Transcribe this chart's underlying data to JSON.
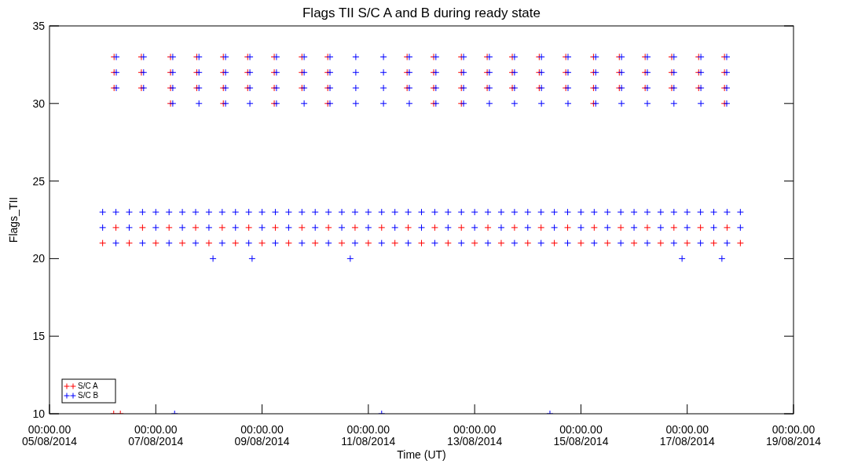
{
  "chart_data": {
    "type": "scatter",
    "title": "Flags TII S/C A and B during ready state",
    "xlabel": "Time (UT)",
    "ylabel": "Flags_TII",
    "xlim": [
      "2014-08-05",
      "2014-08-19"
    ],
    "xticks": [
      {
        "value": "2014-08-05",
        "label": "00:00.00\n05/08/2014"
      },
      {
        "value": "2014-08-07",
        "label": "00:00.00\n07/08/2014"
      },
      {
        "value": "2014-08-09",
        "label": "00:00.00\n09/08/2014"
      },
      {
        "value": "2014-08-11",
        "label": "00:00.00\n11/08/2014"
      },
      {
        "value": "2014-08-13",
        "label": "00:00.00\n13/08/2014"
      },
      {
        "value": "2014-08-15",
        "label": "00:00.00\n15/08/2014"
      },
      {
        "value": "2014-08-17",
        "label": "00:00.00\n17/08/2014"
      },
      {
        "value": "2014-08-19",
        "label": "00:00.00\n19/08/2014"
      }
    ],
    "ylim": [
      10,
      35
    ],
    "yticks": [
      10,
      15,
      20,
      25,
      30,
      35
    ],
    "marker": "cross",
    "legend": "bottom left",
    "series": [
      {
        "name": "S/C A",
        "color": "#ff0000",
        "x": [
          "2014-08-06T05:10",
          "2014-08-06T17:30",
          "2014-08-07T06:40",
          "2014-08-07T18:30",
          "2014-08-08T06:30",
          "2014-08-08T17:30",
          "2014-08-09T05:30",
          "2014-08-09T18:00",
          "2014-08-10T05:40",
          "2014-08-11T17:30",
          "2014-08-12T05:30",
          "2014-08-12T18:00",
          "2014-08-13T05:40",
          "2014-08-13T17:00",
          "2014-08-14T05:10",
          "2014-08-14T17:10",
          "2014-08-15T05:40",
          "2014-08-15T17:20",
          "2014-08-16T05:00",
          "2014-08-16T17:00",
          "2014-08-17T05:10",
          "2014-08-17T16:50"
        ],
        "values": [
          33,
          33,
          33,
          33,
          33,
          33,
          33,
          33,
          33,
          33,
          33,
          33,
          33,
          33,
          33,
          33,
          33,
          33,
          33,
          33,
          33,
          33
        ]
      },
      {
        "name": "S/C B",
        "color": "#0000ff",
        "x": [
          "2014-08-06T06:10",
          "2014-08-06T18:30",
          "2014-08-07T07:40",
          "2014-08-07T19:30",
          "2014-08-08T07:30",
          "2014-08-08T18:30",
          "2014-08-09T06:30",
          "2014-08-09T19:00",
          "2014-08-10T06:40",
          "2014-08-10T18:20",
          "2014-08-11T06:50",
          "2014-08-11T18:30",
          "2014-08-12T06:30",
          "2014-08-12T19:00",
          "2014-08-13T06:40",
          "2014-08-13T18:00",
          "2014-08-14T06:10",
          "2014-08-14T18:10",
          "2014-08-15T06:40",
          "2014-08-15T18:20",
          "2014-08-16T06:00",
          "2014-08-16T18:00",
          "2014-08-17T06:10",
          "2014-08-17T17:50"
        ],
        "values": [
          33,
          33,
          33,
          33,
          33,
          33,
          33,
          33,
          33,
          33,
          33,
          33,
          33,
          33,
          33,
          33,
          33,
          33,
          33,
          33,
          33,
          33,
          33,
          33
        ]
      },
      {
        "color": "#ff0000",
        "x": [
          "2014-08-06T05:10",
          "2014-08-06T17:30",
          "2014-08-07T06:40",
          "2014-08-07T18:30",
          "2014-08-08T06:30",
          "2014-08-08T17:30",
          "2014-08-09T05:30",
          "2014-08-09T18:00",
          "2014-08-10T05:40",
          "2014-08-11T17:30",
          "2014-08-12T05:30",
          "2014-08-12T18:00",
          "2014-08-13T05:40",
          "2014-08-13T17:00",
          "2014-08-14T05:10",
          "2014-08-14T17:10",
          "2014-08-15T05:40",
          "2014-08-15T17:20",
          "2014-08-16T05:00",
          "2014-08-16T17:00",
          "2014-08-17T05:10",
          "2014-08-17T16:50"
        ],
        "values": [
          32,
          32,
          32,
          32,
          32,
          32,
          32,
          32,
          32,
          32,
          32,
          32,
          32,
          32,
          32,
          32,
          32,
          32,
          32,
          32,
          32,
          32
        ]
      },
      {
        "color": "#0000ff",
        "x": [
          "2014-08-06T06:10",
          "2014-08-06T18:30",
          "2014-08-07T07:40",
          "2014-08-07T19:30",
          "2014-08-08T07:30",
          "2014-08-08T18:30",
          "2014-08-09T06:30",
          "2014-08-09T19:00",
          "2014-08-10T06:40",
          "2014-08-10T18:20",
          "2014-08-11T06:50",
          "2014-08-11T18:30",
          "2014-08-12T06:30",
          "2014-08-12T19:00",
          "2014-08-13T06:40",
          "2014-08-13T18:00",
          "2014-08-14T06:10",
          "2014-08-14T18:10",
          "2014-08-15T06:40",
          "2014-08-15T18:20",
          "2014-08-16T06:00",
          "2014-08-16T18:00",
          "2014-08-17T06:10",
          "2014-08-17T17:50"
        ],
        "values": [
          32,
          32,
          32,
          32,
          32,
          32,
          32,
          32,
          32,
          32,
          32,
          32,
          32,
          32,
          32,
          32,
          32,
          32,
          32,
          32,
          32,
          32,
          32,
          32
        ]
      },
      {
        "color": "#ff0000",
        "x": [
          "2014-08-06T05:10",
          "2014-08-06T17:30",
          "2014-08-07T06:40",
          "2014-08-07T18:30",
          "2014-08-08T06:30",
          "2014-08-08T17:30",
          "2014-08-09T05:30",
          "2014-08-09T18:00",
          "2014-08-10T05:40",
          "2014-08-11T17:30",
          "2014-08-12T05:30",
          "2014-08-12T18:00",
          "2014-08-13T05:40",
          "2014-08-13T17:00",
          "2014-08-14T05:10",
          "2014-08-14T17:10",
          "2014-08-15T05:40",
          "2014-08-15T17:20",
          "2014-08-16T05:00",
          "2014-08-16T17:00",
          "2014-08-17T05:10",
          "2014-08-17T16:50"
        ],
        "values": [
          31,
          31,
          31,
          31,
          31,
          31,
          31,
          31,
          31,
          31,
          31,
          31,
          31,
          31,
          31,
          31,
          31,
          31,
          31,
          31,
          31,
          31
        ]
      },
      {
        "color": "#0000ff",
        "x": [
          "2014-08-06T06:10",
          "2014-08-06T18:30",
          "2014-08-07T07:40",
          "2014-08-07T19:30",
          "2014-08-08T07:30",
          "2014-08-08T18:30",
          "2014-08-09T06:30",
          "2014-08-09T19:00",
          "2014-08-10T06:40",
          "2014-08-10T18:20",
          "2014-08-11T06:50",
          "2014-08-11T18:30",
          "2014-08-12T06:30",
          "2014-08-12T19:00",
          "2014-08-13T06:40",
          "2014-08-13T18:00",
          "2014-08-14T06:10",
          "2014-08-14T18:10",
          "2014-08-15T06:40",
          "2014-08-15T18:20",
          "2014-08-16T06:00",
          "2014-08-16T18:00",
          "2014-08-17T06:10",
          "2014-08-17T17:50"
        ],
        "values": [
          31,
          31,
          31,
          31,
          31,
          31,
          31,
          31,
          31,
          31,
          31,
          31,
          31,
          31,
          31,
          31,
          31,
          31,
          31,
          31,
          31,
          31,
          31,
          31
        ]
      },
      {
        "color": "#ff0000",
        "x": [
          "2014-08-07T06:40",
          "2014-08-08T06:30",
          "2014-08-09T05:30",
          "2014-08-10T05:40",
          "2014-08-12T05:30",
          "2014-08-12T18:00",
          "2014-08-15T05:40",
          "2014-08-17T16:50"
        ],
        "values": [
          30,
          30,
          30,
          30,
          30,
          30,
          30,
          30
        ]
      },
      {
        "color": "#0000ff",
        "x": [
          "2014-08-07T07:40",
          "2014-08-07T19:30",
          "2014-08-08T07:30",
          "2014-08-08T18:30",
          "2014-08-09T06:30",
          "2014-08-09T19:00",
          "2014-08-10T06:40",
          "2014-08-10T18:20",
          "2014-08-11T06:50",
          "2014-08-11T18:30",
          "2014-08-12T06:30",
          "2014-08-12T19:00",
          "2014-08-13T06:40",
          "2014-08-13T18:00",
          "2014-08-14T06:10",
          "2014-08-14T18:10",
          "2014-08-15T06:40",
          "2014-08-15T18:20",
          "2014-08-16T06:00",
          "2014-08-16T18:00",
          "2014-08-17T06:10",
          "2014-08-17T17:50"
        ],
        "values": [
          30,
          30,
          30,
          30,
          30,
          30,
          30,
          30,
          30,
          30,
          30,
          30,
          30,
          30,
          30,
          30,
          30,
          30,
          30,
          30,
          30,
          30
        ]
      },
      {
        "color": "#0000ff",
        "x": [
          "2014-08-06T00:00",
          "2014-08-06T06:00",
          "2014-08-06T12:00",
          "2014-08-06T18:00",
          "2014-08-07T00:00",
          "2014-08-07T06:00",
          "2014-08-07T12:00",
          "2014-08-07T18:00",
          "2014-08-08T00:00",
          "2014-08-08T06:00",
          "2014-08-08T12:00",
          "2014-08-08T18:00",
          "2014-08-09T00:00",
          "2014-08-09T06:00",
          "2014-08-09T12:00",
          "2014-08-09T18:00",
          "2014-08-10T00:00",
          "2014-08-10T06:00",
          "2014-08-10T12:00",
          "2014-08-10T18:00",
          "2014-08-11T00:00",
          "2014-08-11T06:00",
          "2014-08-11T12:00",
          "2014-08-11T18:00",
          "2014-08-12T00:00",
          "2014-08-12T06:00",
          "2014-08-12T12:00",
          "2014-08-12T18:00",
          "2014-08-13T00:00",
          "2014-08-13T06:00",
          "2014-08-13T12:00",
          "2014-08-13T18:00",
          "2014-08-14T00:00",
          "2014-08-14T06:00",
          "2014-08-14T12:00",
          "2014-08-14T18:00",
          "2014-08-15T00:00",
          "2014-08-15T06:00",
          "2014-08-15T12:00",
          "2014-08-15T18:00",
          "2014-08-16T00:00",
          "2014-08-16T06:00",
          "2014-08-16T12:00",
          "2014-08-16T18:00",
          "2014-08-17T00:00",
          "2014-08-17T06:00",
          "2014-08-17T12:00",
          "2014-08-17T18:00",
          "2014-08-18T00:00"
        ],
        "values": [
          23,
          23,
          23,
          23,
          23,
          23,
          23,
          23,
          23,
          23,
          23,
          23,
          23,
          23,
          23,
          23,
          23,
          23,
          23,
          23,
          23,
          23,
          23,
          23,
          23,
          23,
          23,
          23,
          23,
          23,
          23,
          23,
          23,
          23,
          23,
          23,
          23,
          23,
          23,
          23,
          23,
          23,
          23,
          23,
          23,
          23,
          23,
          23,
          23
        ]
      },
      {
        "color": "#ff0000",
        "x": [
          "2014-08-06T06:00",
          "2014-08-06T18:00",
          "2014-08-07T06:00",
          "2014-08-07T18:00",
          "2014-08-08T06:00",
          "2014-08-08T18:00",
          "2014-08-09T06:00",
          "2014-08-09T18:00",
          "2014-08-10T06:00",
          "2014-08-10T18:00",
          "2014-08-11T06:00",
          "2014-08-11T18:00",
          "2014-08-12T06:00",
          "2014-08-12T18:00",
          "2014-08-13T06:00",
          "2014-08-13T18:00",
          "2014-08-14T06:00",
          "2014-08-14T18:00",
          "2014-08-15T06:00",
          "2014-08-15T18:00",
          "2014-08-16T06:00",
          "2014-08-16T18:00",
          "2014-08-17T06:00",
          "2014-08-17T18:00"
        ],
        "values": [
          22,
          22,
          22,
          22,
          22,
          22,
          22,
          22,
          22,
          22,
          22,
          22,
          22,
          22,
          22,
          22,
          22,
          22,
          22,
          22,
          22,
          22,
          22,
          22
        ]
      },
      {
        "color": "#0000ff",
        "x": [
          "2014-08-06T00:00",
          "2014-08-06T12:00",
          "2014-08-07T00:00",
          "2014-08-07T12:00",
          "2014-08-08T00:00",
          "2014-08-08T12:00",
          "2014-08-09T00:00",
          "2014-08-09T12:00",
          "2014-08-10T00:00",
          "2014-08-10T12:00",
          "2014-08-11T00:00",
          "2014-08-11T12:00",
          "2014-08-12T00:00",
          "2014-08-12T12:00",
          "2014-08-13T00:00",
          "2014-08-13T12:00",
          "2014-08-14T00:00",
          "2014-08-14T12:00",
          "2014-08-15T00:00",
          "2014-08-15T12:00",
          "2014-08-16T00:00",
          "2014-08-16T12:00",
          "2014-08-17T00:00",
          "2014-08-17T12:00",
          "2014-08-18T00:00"
        ],
        "values": [
          22,
          22,
          22,
          22,
          22,
          22,
          22,
          22,
          22,
          22,
          22,
          22,
          22,
          22,
          22,
          22,
          22,
          22,
          22,
          22,
          22,
          22,
          22,
          22,
          22
        ]
      },
      {
        "color": "#ff0000",
        "x": [
          "2014-08-06T00:00",
          "2014-08-06T12:00",
          "2014-08-07T00:00",
          "2014-08-07T12:00",
          "2014-08-08T00:00",
          "2014-08-08T12:00",
          "2014-08-09T00:00",
          "2014-08-09T12:00",
          "2014-08-10T00:00",
          "2014-08-10T12:00",
          "2014-08-11T00:00",
          "2014-08-11T12:00",
          "2014-08-12T00:00",
          "2014-08-12T12:00",
          "2014-08-13T00:00",
          "2014-08-13T12:00",
          "2014-08-14T00:00",
          "2014-08-14T12:00",
          "2014-08-15T00:00",
          "2014-08-15T12:00",
          "2014-08-16T00:00",
          "2014-08-16T12:00",
          "2014-08-17T00:00",
          "2014-08-17T12:00",
          "2014-08-18T00:00"
        ],
        "values": [
          21,
          21,
          21,
          21,
          21,
          21,
          21,
          21,
          21,
          21,
          21,
          21,
          21,
          21,
          21,
          21,
          21,
          21,
          21,
          21,
          21,
          21,
          21,
          21,
          21
        ]
      },
      {
        "color": "#0000ff",
        "x": [
          "2014-08-06T06:00",
          "2014-08-06T18:00",
          "2014-08-07T06:00",
          "2014-08-07T18:00",
          "2014-08-08T06:00",
          "2014-08-08T18:00",
          "2014-08-09T06:00",
          "2014-08-09T18:00",
          "2014-08-10T06:00",
          "2014-08-10T18:00",
          "2014-08-11T06:00",
          "2014-08-11T18:00",
          "2014-08-12T06:00",
          "2014-08-12T18:00",
          "2014-08-13T06:00",
          "2014-08-13T18:00",
          "2014-08-14T06:00",
          "2014-08-14T18:00",
          "2014-08-15T06:00",
          "2014-08-15T18:00",
          "2014-08-16T06:00",
          "2014-08-16T18:00",
          "2014-08-17T06:00",
          "2014-08-17T18:00"
        ],
        "values": [
          21,
          21,
          21,
          21,
          21,
          21,
          21,
          21,
          21,
          21,
          21,
          21,
          21,
          21,
          21,
          21,
          21,
          21,
          21,
          21,
          21,
          21,
          21,
          21
        ]
      },
      {
        "color": "#0000ff",
        "x": [
          "2014-08-08T01:50",
          "2014-08-08T19:30",
          "2014-08-10T15:50",
          "2014-08-16T21:40",
          "2014-08-17T15:40"
        ],
        "values": [
          20,
          20,
          20,
          20,
          20
        ]
      },
      {
        "color": "#ff0000",
        "x": [
          "2014-08-06T05:00",
          "2014-08-06T08:00"
        ],
        "values": [
          10,
          10
        ]
      },
      {
        "color": "#0000ff",
        "x": [
          "2014-08-07T08:30",
          "2014-08-11T06:00",
          "2014-08-14T10:00"
        ],
        "values": [
          10,
          10,
          10
        ]
      }
    ]
  }
}
